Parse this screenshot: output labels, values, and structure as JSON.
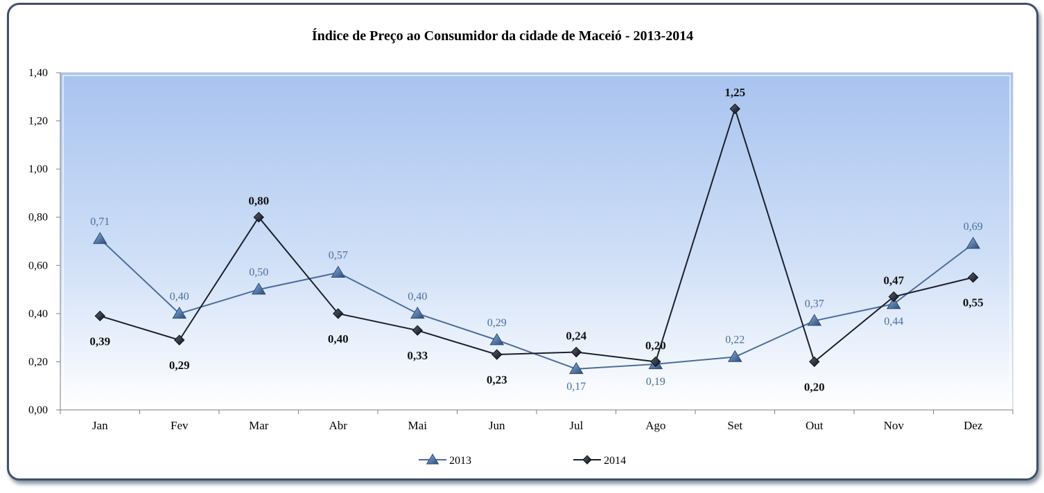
{
  "chart_data": {
    "type": "line",
    "title": "Índice de Preço ao Consumidor da cidade de Maceió - 2013-2014",
    "xlabel": "",
    "ylabel": "",
    "categories": [
      "Jan",
      "Fev",
      "Mar",
      "Abr",
      "Mai",
      "Jun",
      "Jul",
      "Ago",
      "Set",
      "Out",
      "Nov",
      "Dez"
    ],
    "ylim": [
      0,
      1.4
    ],
    "yticks": [
      "0,00",
      "0,20",
      "0,40",
      "0,60",
      "0,80",
      "1,00",
      "1,20",
      "1,40"
    ],
    "grid": false,
    "legend_position": "bottom",
    "series": [
      {
        "name": "2013",
        "marker": "triangle",
        "color": "#4a6d9c",
        "values": [
          0.71,
          0.4,
          0.5,
          0.57,
          0.4,
          0.29,
          0.17,
          0.19,
          0.22,
          0.37,
          0.44,
          0.69
        ],
        "labels": [
          "0,71",
          "0,40",
          "0,50",
          "0,57",
          "0,40",
          "0,29",
          "0,17",
          "0,19",
          "0,22",
          "0,37",
          "0,44",
          "0,69"
        ]
      },
      {
        "name": "2014",
        "marker": "diamond",
        "color": "#1a1f2b",
        "values": [
          0.39,
          0.29,
          0.8,
          0.4,
          0.33,
          0.23,
          0.24,
          0.2,
          1.25,
          0.2,
          0.47,
          0.55
        ],
        "labels": [
          "0,39",
          "0,29",
          "0,80",
          "0,40",
          "0,33",
          "0,23",
          "0,24",
          "0,20",
          "1,25",
          "0,20",
          "0,47",
          "0,55"
        ]
      }
    ]
  }
}
